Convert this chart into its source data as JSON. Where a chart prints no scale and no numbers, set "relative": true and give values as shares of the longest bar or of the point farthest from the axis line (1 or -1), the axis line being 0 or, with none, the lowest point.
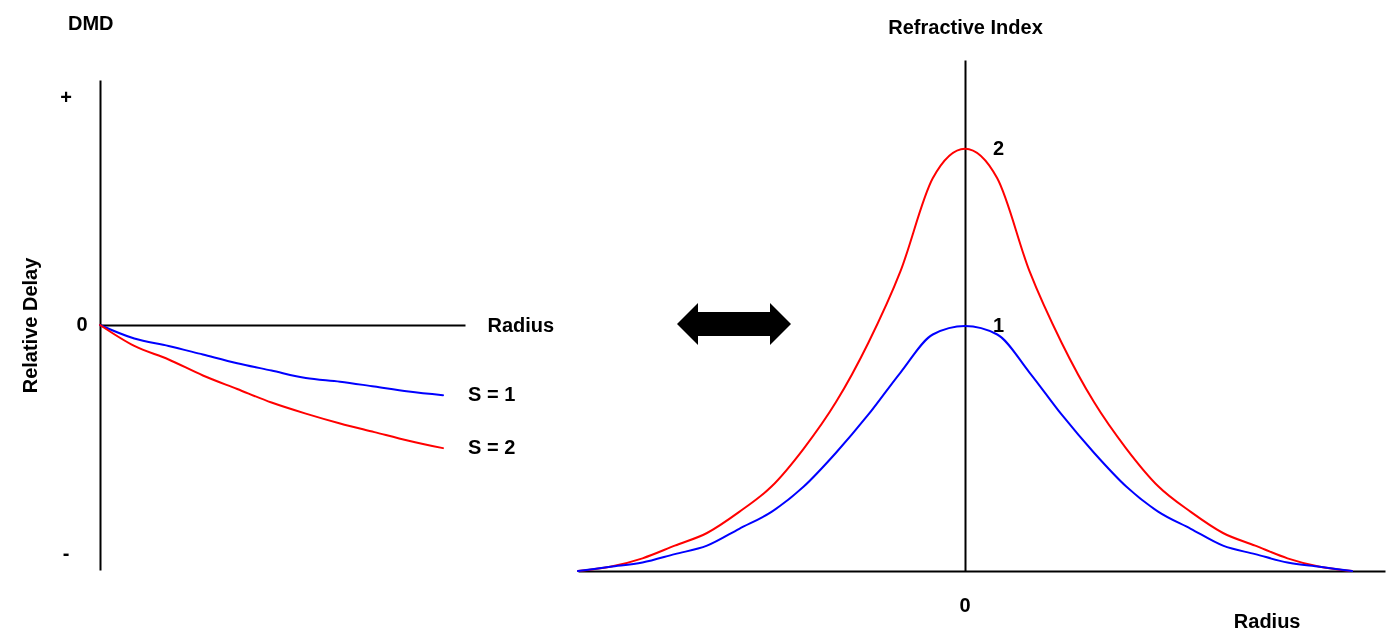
{
  "chart_data": [
    {
      "type": "line",
      "relative": true,
      "title": "DMD",
      "xlabel": "Radius",
      "ylabel": "Relative Delay",
      "categories": [
        null,
        null,
        null,
        null,
        null,
        null,
        null,
        null,
        null,
        null,
        null
      ],
      "annotations": [
        "+",
        "0",
        "-"
      ],
      "series": [
        {
          "name": "S = 1",
          "color": "#0000ff",
          "values": [
            0,
            -0.11,
            -0.17,
            -0.24,
            -0.31,
            -0.37,
            -0.43,
            -0.46,
            -0.5,
            -0.54,
            -0.57
          ]
        },
        {
          "name": "S = 2",
          "color": "#ff0000",
          "values": [
            0,
            -0.17,
            -0.28,
            -0.41,
            -0.52,
            -0.63,
            -0.72,
            -0.8,
            -0.87,
            -0.94,
            -1
          ]
        }
      ]
    },
    {
      "type": "line",
      "relative": true,
      "xlabel": "Radius",
      "ylabel": "Refractive Index",
      "categories": [
        null,
        null,
        null,
        null,
        null,
        null,
        null,
        null,
        null,
        null,
        null,
        null,
        null,
        null,
        null,
        null,
        null,
        null,
        null,
        null,
        null,
        null,
        null,
        null,
        null
      ],
      "annotations": [
        "0"
      ],
      "series": [
        {
          "name": "2",
          "color": "#ff0000",
          "values": [
            0,
            0.01,
            0.03,
            0.06,
            0.09,
            0.14,
            0.2,
            0.29,
            0.4,
            0.54,
            0.71,
            0.93,
            1,
            0.93,
            0.71,
            0.54,
            0.4,
            0.29,
            0.2,
            0.14,
            0.09,
            0.06,
            0.03,
            0.01,
            0
          ]
        },
        {
          "name": "1",
          "color": "#0000ff",
          "values": [
            0,
            0.01,
            0.02,
            0.04,
            0.06,
            0.1,
            0.14,
            0.2,
            0.28,
            0.37,
            0.47,
            0.56,
            0.58,
            0.56,
            0.47,
            0.37,
            0.28,
            0.2,
            0.14,
            0.1,
            0.06,
            0.04,
            0.02,
            0.01,
            0
          ]
        }
      ]
    }
  ]
}
